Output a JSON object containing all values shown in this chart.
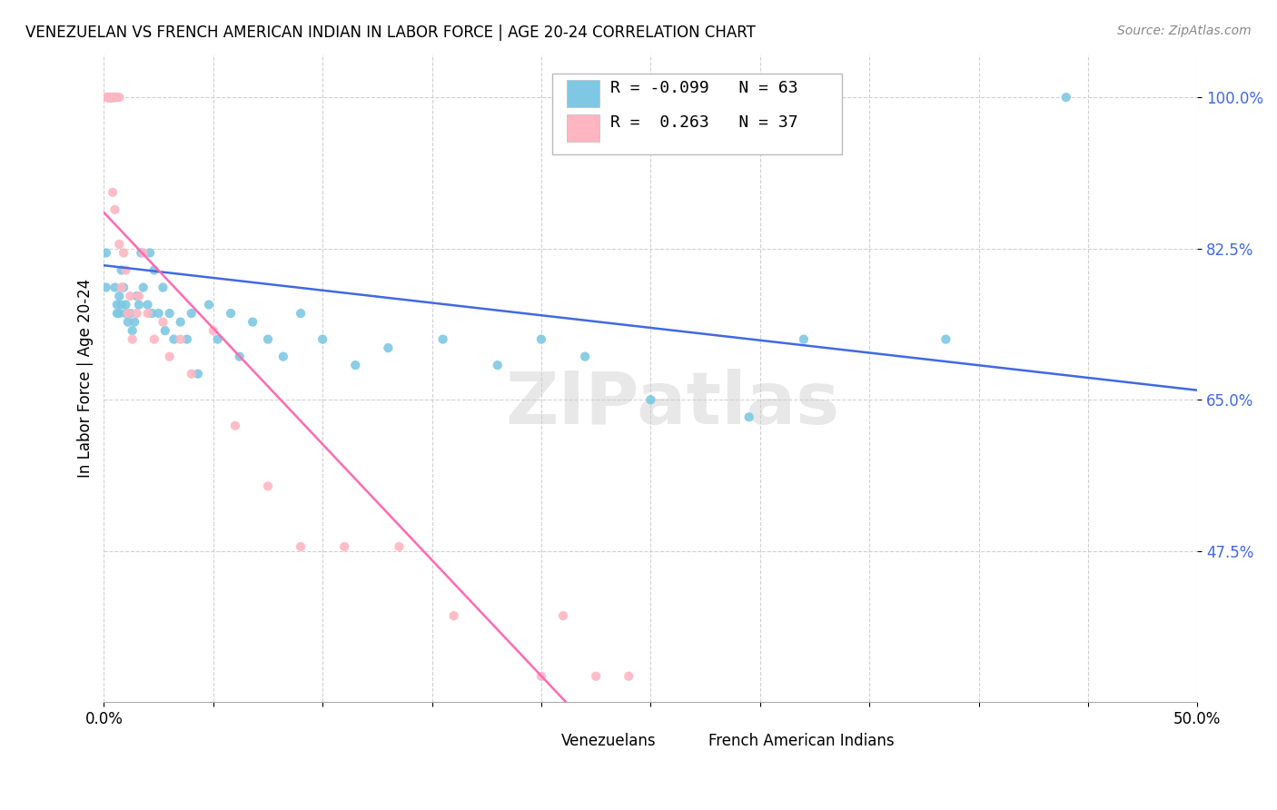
{
  "title": "VENEZUELAN VS FRENCH AMERICAN INDIAN IN LABOR FORCE | AGE 20-24 CORRELATION CHART",
  "source": "Source: ZipAtlas.com",
  "ylabel": "In Labor Force | Age 20-24",
  "xlim": [
    0.0,
    0.5
  ],
  "ylim": [
    0.3,
    1.05
  ],
  "yticks": [
    0.475,
    0.65,
    0.825,
    1.0
  ],
  "ytick_labels": [
    "47.5%",
    "65.0%",
    "82.5%",
    "100.0%"
  ],
  "xticks": [
    0.0,
    0.05,
    0.1,
    0.15,
    0.2,
    0.25,
    0.3,
    0.35,
    0.4,
    0.45,
    0.5
  ],
  "xtick_labels": [
    "0.0%",
    "",
    "",
    "",
    "",
    "",
    "",
    "",
    "",
    "",
    "50.0%"
  ],
  "venezuelan_R": -0.099,
  "venezuelan_N": 63,
  "french_R": 0.263,
  "french_N": 37,
  "blue_color": "#7ec8e3",
  "pink_color": "#ffb6c1",
  "line_blue": "#4169e1",
  "line_pink": "#ff69b4",
  "watermark_text": "ZIPatlas",
  "venezuelan_x": [
    0.001,
    0.001,
    0.002,
    0.002,
    0.002,
    0.003,
    0.003,
    0.003,
    0.004,
    0.004,
    0.005,
    0.005,
    0.005,
    0.006,
    0.006,
    0.007,
    0.007,
    0.008,
    0.008,
    0.009,
    0.01,
    0.01,
    0.011,
    0.012,
    0.013,
    0.014,
    0.015,
    0.016,
    0.017,
    0.018,
    0.02,
    0.021,
    0.022,
    0.023,
    0.025,
    0.027,
    0.028,
    0.03,
    0.032,
    0.035,
    0.038,
    0.04,
    0.043,
    0.048,
    0.052,
    0.058,
    0.062,
    0.068,
    0.075,
    0.082,
    0.09,
    0.1,
    0.115,
    0.13,
    0.155,
    0.18,
    0.2,
    0.22,
    0.25,
    0.295,
    0.32,
    0.385,
    0.44
  ],
  "venezuelan_y": [
    0.78,
    0.82,
    1.0,
    1.0,
    1.0,
    1.0,
    1.0,
    1.0,
    1.0,
    1.0,
    1.0,
    1.0,
    0.78,
    0.75,
    0.76,
    0.75,
    0.77,
    0.76,
    0.8,
    0.78,
    0.75,
    0.76,
    0.74,
    0.75,
    0.73,
    0.74,
    0.77,
    0.76,
    0.82,
    0.78,
    0.76,
    0.82,
    0.75,
    0.8,
    0.75,
    0.78,
    0.73,
    0.75,
    0.72,
    0.74,
    0.72,
    0.75,
    0.68,
    0.76,
    0.72,
    0.75,
    0.7,
    0.74,
    0.72,
    0.7,
    0.75,
    0.72,
    0.69,
    0.71,
    0.72,
    0.69,
    0.72,
    0.7,
    0.65,
    0.63,
    0.72,
    0.72,
    1.0
  ],
  "french_x": [
    0.001,
    0.002,
    0.002,
    0.003,
    0.003,
    0.004,
    0.004,
    0.005,
    0.006,
    0.007,
    0.007,
    0.008,
    0.009,
    0.01,
    0.011,
    0.012,
    0.013,
    0.015,
    0.016,
    0.018,
    0.02,
    0.023,
    0.027,
    0.03,
    0.035,
    0.04,
    0.05,
    0.06,
    0.075,
    0.09,
    0.11,
    0.135,
    0.16,
    0.2,
    0.21,
    0.225,
    0.24
  ],
  "french_y": [
    1.0,
    1.0,
    1.0,
    1.0,
    1.0,
    1.0,
    0.89,
    0.87,
    1.0,
    1.0,
    0.83,
    0.78,
    0.82,
    0.8,
    0.75,
    0.77,
    0.72,
    0.75,
    0.77,
    0.82,
    0.75,
    0.72,
    0.74,
    0.7,
    0.72,
    0.68,
    0.73,
    0.62,
    0.55,
    0.48,
    0.48,
    0.48,
    0.4,
    0.33,
    0.4,
    0.33,
    0.33
  ]
}
